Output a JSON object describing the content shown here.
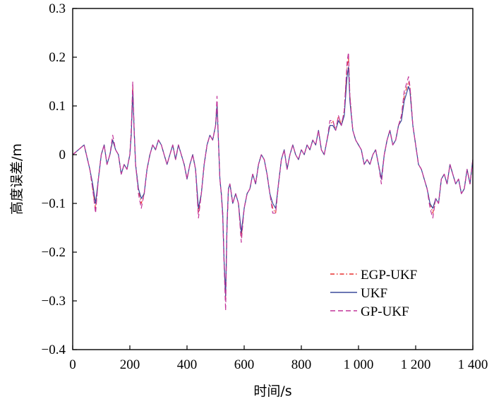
{
  "chart_data": {
    "type": "line",
    "xlabel": "时间/s",
    "ylabel": "高度误差/m",
    "xlim": [
      0,
      1400
    ],
    "ylim": [
      -0.4,
      0.3
    ],
    "xticks": [
      0,
      200,
      400,
      600,
      800,
      1000,
      1200,
      1400
    ],
    "yticks": [
      -0.4,
      -0.3,
      -0.2,
      -0.1,
      0,
      0.1,
      0.2,
      0.3
    ],
    "xtick_labels": [
      "0",
      "200",
      "400",
      "600",
      "800",
      "1 000",
      "1 200",
      "1 400"
    ],
    "ytick_labels": [
      "-0.4",
      "-0.3",
      "-0.2",
      "-0.1",
      "0",
      "0.1",
      "0.2",
      "0.3"
    ],
    "grid": false,
    "legend_position": "bottom-right",
    "series": [
      {
        "name": "EGP-UKF",
        "color": "#e8312f",
        "dash": "dashdot",
        "x": [
          0,
          20,
          40,
          60,
          70,
          80,
          90,
          100,
          110,
          120,
          130,
          140,
          150,
          160,
          170,
          180,
          190,
          200,
          205,
          210,
          215,
          220,
          230,
          240,
          250,
          260,
          270,
          280,
          290,
          300,
          310,
          320,
          330,
          340,
          350,
          360,
          370,
          380,
          390,
          400,
          410,
          420,
          430,
          440,
          450,
          460,
          470,
          480,
          490,
          500,
          505,
          510,
          515,
          520,
          525,
          530,
          535,
          540,
          545,
          550,
          560,
          570,
          580,
          590,
          600,
          610,
          620,
          630,
          640,
          650,
          660,
          670,
          680,
          690,
          700,
          710,
          720,
          730,
          740,
          750,
          760,
          770,
          780,
          790,
          800,
          810,
          820,
          830,
          840,
          850,
          860,
          870,
          880,
          890,
          900,
          910,
          920,
          930,
          940,
          950,
          960,
          965,
          970,
          980,
          990,
          1000,
          1010,
          1020,
          1030,
          1040,
          1050,
          1060,
          1070,
          1080,
          1090,
          1100,
          1110,
          1120,
          1130,
          1140,
          1150,
          1160,
          1170,
          1175,
          1180,
          1190,
          1200,
          1210,
          1220,
          1230,
          1240,
          1250,
          1260,
          1270,
          1280,
          1290,
          1300,
          1310,
          1320,
          1330,
          1340,
          1350,
          1360,
          1370,
          1380,
          1390,
          1400
        ],
        "y": [
          0,
          0.01,
          0.02,
          -0.03,
          -0.07,
          -0.11,
          -0.05,
          0,
          0.02,
          -0.02,
          0,
          0.03,
          0.01,
          0,
          -0.04,
          -0.02,
          -0.03,
          0,
          0.05,
          0.14,
          0.05,
          -0.02,
          -0.07,
          -0.1,
          -0.08,
          -0.03,
          0,
          0.02,
          0.01,
          0.03,
          0.02,
          0,
          -0.02,
          0,
          0.02,
          -0.01,
          0.02,
          0,
          -0.02,
          -0.05,
          -0.02,
          0,
          -0.03,
          -0.12,
          -0.08,
          -0.02,
          0.02,
          0.04,
          0.03,
          0.06,
          0.11,
          0.03,
          -0.05,
          -0.08,
          -0.12,
          -0.22,
          -0.3,
          -0.15,
          -0.07,
          -0.06,
          -0.1,
          -0.08,
          -0.1,
          -0.17,
          -0.11,
          -0.08,
          -0.07,
          -0.04,
          -0.06,
          -0.02,
          0,
          -0.01,
          -0.04,
          -0.08,
          -0.11,
          -0.12,
          -0.06,
          -0.01,
          0.01,
          -0.03,
          0,
          0.02,
          0,
          -0.01,
          0.01,
          0,
          0.02,
          0.01,
          0.03,
          0.02,
          0.05,
          0.01,
          0,
          0.03,
          0.06,
          0.07,
          0.05,
          0.08,
          0.06,
          0.09,
          0.18,
          0.2,
          0.12,
          0.05,
          0.03,
          0.02,
          0.01,
          -0.02,
          -0.01,
          -0.02,
          0,
          0.01,
          -0.02,
          -0.05,
          0,
          0.03,
          0.05,
          0.02,
          0.03,
          0.06,
          0.08,
          0.12,
          0.14,
          0.15,
          0.14,
          0.06,
          0.02,
          -0.02,
          -0.03,
          -0.05,
          -0.07,
          -0.1,
          -0.12,
          -0.09,
          -0.1,
          -0.05,
          -0.04,
          -0.06,
          -0.02,
          -0.04,
          -0.06,
          -0.05,
          -0.08,
          -0.07,
          -0.03,
          -0.06,
          -0.01
        ]
      },
      {
        "name": "UKF",
        "color": "#3a4a9a",
        "dash": "solid",
        "x": [
          0,
          20,
          40,
          60,
          70,
          80,
          90,
          100,
          110,
          120,
          130,
          140,
          150,
          160,
          170,
          180,
          190,
          200,
          205,
          210,
          215,
          220,
          230,
          240,
          250,
          260,
          270,
          280,
          290,
          300,
          310,
          320,
          330,
          340,
          350,
          360,
          370,
          380,
          390,
          400,
          410,
          420,
          430,
          440,
          450,
          460,
          470,
          480,
          490,
          500,
          505,
          510,
          515,
          520,
          525,
          530,
          535,
          540,
          545,
          550,
          560,
          570,
          580,
          590,
          600,
          610,
          620,
          630,
          640,
          650,
          660,
          670,
          680,
          690,
          700,
          710,
          720,
          730,
          740,
          750,
          760,
          770,
          780,
          790,
          800,
          810,
          820,
          830,
          840,
          850,
          860,
          870,
          880,
          890,
          900,
          910,
          920,
          930,
          940,
          950,
          960,
          965,
          970,
          980,
          990,
          1000,
          1010,
          1020,
          1030,
          1040,
          1050,
          1060,
          1070,
          1080,
          1090,
          1100,
          1110,
          1120,
          1130,
          1140,
          1150,
          1160,
          1170,
          1175,
          1180,
          1190,
          1200,
          1210,
          1220,
          1230,
          1240,
          1250,
          1260,
          1270,
          1280,
          1290,
          1300,
          1310,
          1320,
          1330,
          1340,
          1350,
          1360,
          1370,
          1380,
          1390,
          1400
        ],
        "y": [
          0,
          0.01,
          0.02,
          -0.03,
          -0.06,
          -0.1,
          -0.05,
          0,
          0.02,
          -0.02,
          0,
          0.03,
          0.01,
          0,
          -0.04,
          -0.02,
          -0.03,
          0,
          0.04,
          0.13,
          0.05,
          -0.02,
          -0.07,
          -0.09,
          -0.08,
          -0.03,
          0,
          0.02,
          0.01,
          0.03,
          0.02,
          0,
          -0.02,
          0,
          0.02,
          -0.01,
          0.02,
          0,
          -0.02,
          -0.05,
          -0.02,
          0,
          -0.03,
          -0.11,
          -0.08,
          -0.02,
          0.02,
          0.04,
          0.03,
          0.06,
          0.1,
          0.03,
          -0.05,
          -0.08,
          -0.12,
          -0.22,
          -0.29,
          -0.14,
          -0.07,
          -0.06,
          -0.1,
          -0.08,
          -0.1,
          -0.16,
          -0.11,
          -0.08,
          -0.07,
          -0.04,
          -0.06,
          -0.02,
          0,
          -0.01,
          -0.04,
          -0.08,
          -0.1,
          -0.11,
          -0.06,
          -0.01,
          0.01,
          -0.03,
          0,
          0.02,
          0,
          -0.01,
          0.01,
          0,
          0.02,
          0.01,
          0.03,
          0.02,
          0.05,
          0.01,
          0,
          0.03,
          0.06,
          0.06,
          0.05,
          0.07,
          0.06,
          0.08,
          0.16,
          0.18,
          0.11,
          0.05,
          0.03,
          0.02,
          0.01,
          -0.02,
          -0.01,
          -0.02,
          0,
          0.01,
          -0.02,
          -0.05,
          0,
          0.03,
          0.05,
          0.02,
          0.03,
          0.06,
          0.07,
          0.11,
          0.13,
          0.14,
          0.13,
          0.06,
          0.02,
          -0.02,
          -0.03,
          -0.05,
          -0.07,
          -0.1,
          -0.11,
          -0.09,
          -0.1,
          -0.05,
          -0.04,
          -0.06,
          -0.02,
          -0.04,
          -0.06,
          -0.05,
          -0.08,
          -0.07,
          -0.03,
          -0.06,
          -0.01
        ]
      },
      {
        "name": "GP-UKF",
        "color": "#c2359a",
        "dash": "dash",
        "x": [
          0,
          20,
          40,
          60,
          70,
          80,
          90,
          100,
          110,
          120,
          130,
          140,
          150,
          160,
          170,
          180,
          190,
          200,
          205,
          210,
          215,
          220,
          230,
          240,
          250,
          260,
          270,
          280,
          290,
          300,
          310,
          320,
          330,
          340,
          350,
          360,
          370,
          380,
          390,
          400,
          410,
          420,
          430,
          440,
          450,
          460,
          470,
          480,
          490,
          500,
          505,
          510,
          515,
          520,
          525,
          530,
          535,
          540,
          545,
          550,
          560,
          570,
          580,
          590,
          600,
          610,
          620,
          630,
          640,
          650,
          660,
          670,
          680,
          690,
          700,
          710,
          720,
          730,
          740,
          750,
          760,
          770,
          780,
          790,
          800,
          810,
          820,
          830,
          840,
          850,
          860,
          870,
          880,
          890,
          900,
          910,
          920,
          930,
          940,
          950,
          960,
          965,
          970,
          980,
          990,
          1000,
          1010,
          1020,
          1030,
          1040,
          1050,
          1060,
          1070,
          1080,
          1090,
          1100,
          1110,
          1120,
          1130,
          1140,
          1150,
          1160,
          1170,
          1175,
          1180,
          1190,
          1200,
          1210,
          1220,
          1230,
          1240,
          1250,
          1260,
          1270,
          1280,
          1290,
          1300,
          1310,
          1320,
          1330,
          1340,
          1350,
          1360,
          1370,
          1380,
          1390,
          1400
        ],
        "y": [
          0,
          0.01,
          0.02,
          -0.03,
          -0.07,
          -0.12,
          -0.05,
          0,
          0.02,
          -0.02,
          0,
          0.04,
          0.01,
          0,
          -0.04,
          -0.02,
          -0.03,
          0,
          0.05,
          0.15,
          0.05,
          -0.02,
          -0.08,
          -0.11,
          -0.08,
          -0.03,
          0,
          0.02,
          0.01,
          0.03,
          0.02,
          0,
          -0.02,
          0,
          0.02,
          -0.01,
          0.02,
          0,
          -0.02,
          -0.05,
          -0.02,
          0,
          -0.03,
          -0.13,
          -0.08,
          -0.02,
          0.02,
          0.04,
          0.03,
          0.06,
          0.12,
          0.03,
          -0.05,
          -0.08,
          -0.13,
          -0.23,
          -0.32,
          -0.15,
          -0.07,
          -0.06,
          -0.1,
          -0.08,
          -0.1,
          -0.18,
          -0.11,
          -0.08,
          -0.07,
          -0.04,
          -0.06,
          -0.02,
          0,
          -0.01,
          -0.04,
          -0.08,
          -0.12,
          -0.12,
          -0.06,
          -0.01,
          0.01,
          -0.03,
          0,
          0.02,
          0,
          -0.01,
          0.01,
          0,
          0.02,
          0.01,
          0.03,
          0.02,
          0.05,
          0.01,
          0,
          0.03,
          0.07,
          0.07,
          0.05,
          0.08,
          0.06,
          0.09,
          0.19,
          0.21,
          0.12,
          0.05,
          0.03,
          0.02,
          0.01,
          -0.02,
          -0.01,
          -0.02,
          0,
          0.01,
          -0.02,
          -0.06,
          0,
          0.03,
          0.05,
          0.02,
          0.03,
          0.06,
          0.08,
          0.13,
          0.15,
          0.16,
          0.14,
          0.06,
          0.02,
          -0.02,
          -0.03,
          -0.05,
          -0.07,
          -0.11,
          -0.13,
          -0.09,
          -0.1,
          -0.05,
          -0.04,
          -0.06,
          -0.02,
          -0.04,
          -0.06,
          -0.05,
          -0.08,
          -0.07,
          -0.03,
          -0.06,
          -0.01
        ]
      }
    ]
  }
}
